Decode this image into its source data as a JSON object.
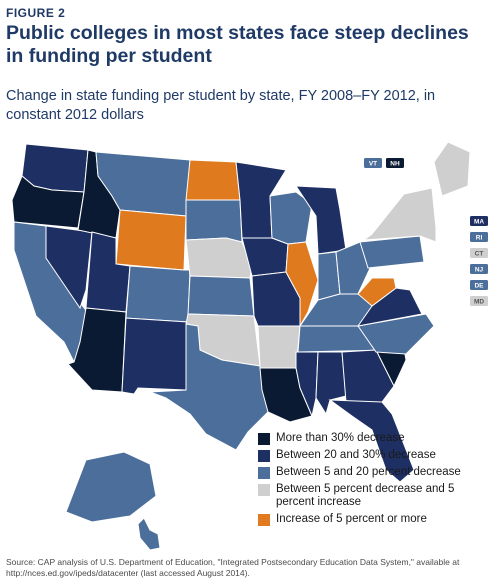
{
  "figure_label": "FIGURE 2",
  "title": "Public colleges in most states face steep declines in funding per student",
  "subtitle": "Change in state funding per student by state, FY 2008–FY 2012, in constant 2012 dollars",
  "colors": {
    "c1": "#0b1a33",
    "c2": "#1e2f63",
    "c3": "#4b6e9b",
    "c4": "#cfcfcf",
    "c5": "#e07a1f"
  },
  "legend": [
    {
      "key": "c1",
      "label": "More than 30% decrease"
    },
    {
      "key": "c2",
      "label": "Between 20 and 30% decrease"
    },
    {
      "key": "c3",
      "label": "Between 5 and 20 percent decrease"
    },
    {
      "key": "c4",
      "label": "Between 5 percent decrease and 5 percent increase"
    },
    {
      "key": "c5",
      "label": "Increase of 5 percent or more"
    }
  ],
  "small_state_tags": [
    {
      "label": "VT",
      "cat": "c3"
    },
    {
      "label": "NH",
      "cat": "c1"
    },
    {
      "label": "MA",
      "cat": "c2"
    },
    {
      "label": "RI",
      "cat": "c3"
    },
    {
      "label": "CT",
      "cat": "c4"
    },
    {
      "label": "NJ",
      "cat": "c3"
    },
    {
      "label": "DE",
      "cat": "c3"
    },
    {
      "label": "MD",
      "cat": "c4"
    }
  ],
  "states": {
    "WA": "c2",
    "OR": "c1",
    "ID": "c1",
    "MT": "c3",
    "WY": "c5",
    "ND": "c5",
    "SD": "c3",
    "NE": "c4",
    "KS": "c3",
    "OK": "c4",
    "TX": "c3",
    "NM": "c2",
    "AZ": "c1",
    "UT": "c2",
    "NV": "c2",
    "CA": "c3",
    "CO": "c3",
    "MN": "c2",
    "IA": "c2",
    "MO": "c2",
    "AR": "c4",
    "LA": "c1",
    "WI": "c3",
    "IL": "c5",
    "MI": "c2",
    "IN": "c3",
    "OH": "c3",
    "KY": "c3",
    "TN": "c3",
    "MS": "c2",
    "AL": "c2",
    "GA": "c2",
    "FL": "c2",
    "SC": "c1",
    "NC": "c3",
    "VA": "c2",
    "WV": "c5",
    "PA": "c3",
    "NY": "c4",
    "ME": "c4",
    "AK": "c3",
    "HI": "c3"
  },
  "source": "Source: CAP analysis of U.S. Department of Education, \"Integrated Postsecondary Education Data System,\" available at http://nces.ed.gov/ipeds/datacenter (last accessed August 2014)."
}
